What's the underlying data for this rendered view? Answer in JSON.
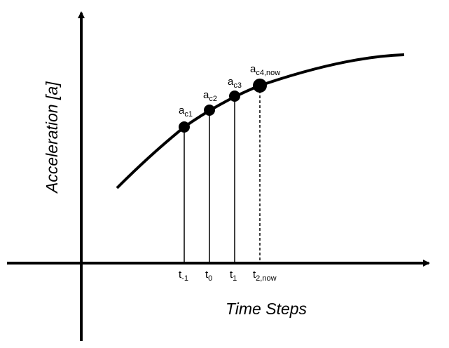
{
  "axes": {
    "y_title": "Acceleration [a]",
    "x_title": "Time Steps"
  },
  "points": [
    {
      "label": {
        "base": "a",
        "sub": "c1"
      },
      "tick": {
        "base": "t",
        "sub": "-1"
      }
    },
    {
      "label": {
        "base": "a",
        "sub": "c2"
      },
      "tick": {
        "base": "t",
        "sub": "0"
      }
    },
    {
      "label": {
        "base": "a",
        "sub": "c3"
      },
      "tick": {
        "base": "t",
        "sub": "1"
      }
    },
    {
      "label": {
        "base": "a",
        "sub": "c4,now"
      },
      "tick": {
        "base": "t",
        "sub": "2,now"
      }
    }
  ]
}
